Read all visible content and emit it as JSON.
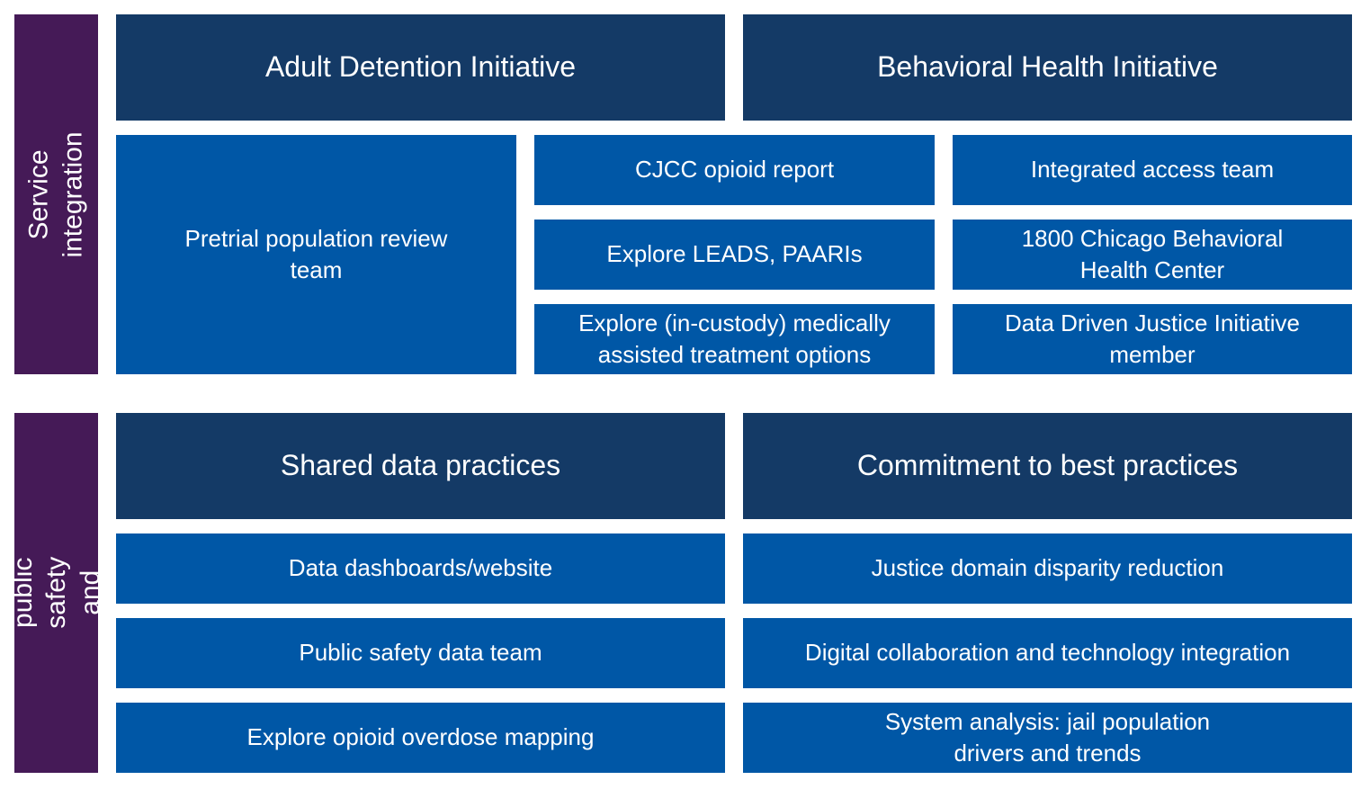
{
  "colors": {
    "sidebar": "#451a57",
    "header": "#143a66",
    "item": "#0057a6",
    "text": "#ffffff"
  },
  "service_integration": {
    "sidebar_label": "Service integration",
    "headers": [
      "Adult Detention Initiative",
      "Behavioral Health Initiative"
    ],
    "pretrial": "Pretrial population review\nteam",
    "middle_column": [
      "CJCC opioid report",
      "Explore LEADS, PAARIs",
      "Explore (in-custody) medically\nassisted treatment options"
    ],
    "right_column": [
      "Integrated access team",
      "1800 Chicago Behavioral\nHealth Center",
      "Data Driven Justice Initiative\nmember"
    ]
  },
  "public_safety": {
    "sidebar_label": "Promote public safety\nand trust",
    "headers": [
      "Shared data practices",
      "Commitment to best practices"
    ],
    "left_column": [
      "Data dashboards/website",
      "Public safety data team",
      "Explore opioid overdose mapping"
    ],
    "right_column": [
      "Justice domain disparity reduction",
      "Digital collaboration and technology integration",
      "System analysis: jail population\ndrivers and trends"
    ]
  }
}
